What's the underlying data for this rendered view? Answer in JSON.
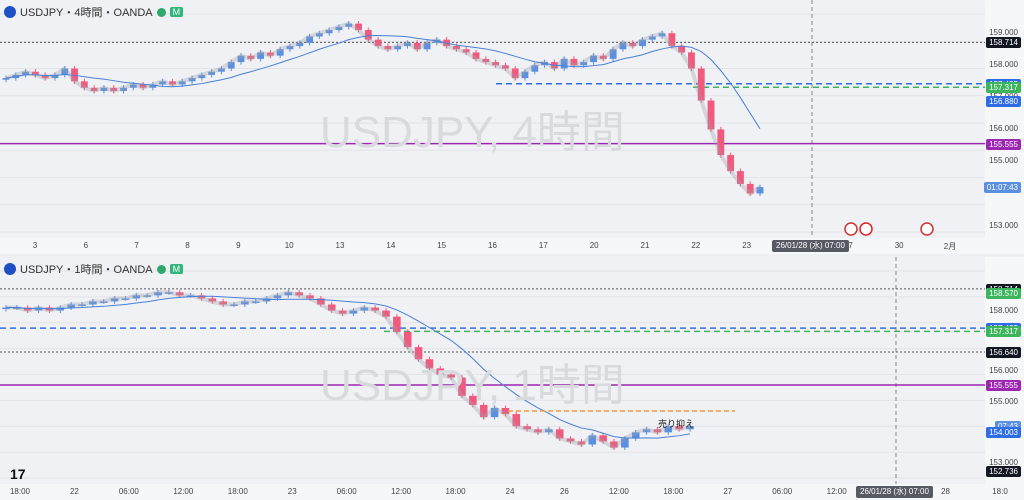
{
  "colors": {
    "up": "#5b8fe0",
    "down": "#f05a7e",
    "ma": "#4a7fd6",
    "bg": "#f0f1f4",
    "grid": "#e2e4e8",
    "blue_dash": "#2f6de6",
    "green_dash": "#3cb55c",
    "purple": "#9c27b0",
    "orange": "#f59a3a",
    "black_dot": "#555555"
  },
  "panel_4h": {
    "symbol": "USDJPY・4時間・OANDA",
    "flag": "M",
    "watermark": "USDJPY, 4時間",
    "y_ticks": [
      "159.000",
      "158.000",
      "157.000",
      "156.000",
      "155.000",
      "153.000"
    ],
    "price_tags": [
      {
        "label": "158.714",
        "color": "#131722",
        "price": 158.714
      },
      {
        "label": "157.425",
        "color": "#2f6de6",
        "price": 157.425
      },
      {
        "label": "157.317",
        "color": "#3cb55c",
        "price": 157.317
      },
      {
        "label": "156.880",
        "color": "#2f6de6",
        "price": 156.88
      },
      {
        "label": "155.555",
        "color": "#9c27b0",
        "price": 155.555
      },
      {
        "label": "01:07:43",
        "color": "#5b8fe0",
        "price": 154.2
      }
    ],
    "x_labels": [
      "3",
      "6",
      "7",
      "8",
      "9",
      "10",
      "13",
      "14",
      "15",
      "16",
      "17",
      "20",
      "21",
      "22",
      "23",
      "24",
      "27",
      "30",
      "2月"
    ],
    "cursor_label": "26/01/28 (水)  07:00"
  },
  "panel_1h": {
    "symbol": "USDJPY・1時間・OANDA",
    "flag": "M",
    "watermark": "USDJPY, 1時間",
    "y_ticks": [
      "158.000",
      "156.000",
      "155.000",
      "154.000",
      "153.000"
    ],
    "price_tags": [
      {
        "label": "158.714",
        "color": "#131722",
        "price": 158.714
      },
      {
        "label": "158.570",
        "color": "#3cb55c",
        "price": 158.57
      },
      {
        "label": "157.425",
        "color": "#2f6de6",
        "price": 157.425
      },
      {
        "label": "157.317",
        "color": "#3cb55c",
        "price": 157.317
      },
      {
        "label": "156.640",
        "color": "#131722",
        "price": 156.64
      },
      {
        "label": "155.555",
        "color": "#9c27b0",
        "price": 155.555
      },
      {
        "label": "07:43",
        "color": "#5b8fe0",
        "price": 154.2
      },
      {
        "label": "154.003",
        "color": "#2f6de6",
        "price": 154.003
      },
      {
        "label": "152.736",
        "color": "#131722",
        "price": 152.736
      }
    ],
    "x_labels": [
      "18:00",
      "22",
      "06:00",
      "12:00",
      "18:00",
      "23",
      "06:00",
      "12:00",
      "18:00",
      "24",
      "26",
      "12:00",
      "18:00",
      "27",
      "06:00",
      "12:00",
      "18:00",
      "28",
      "18:0"
    ],
    "cursor_label": "26/01/28 (水)  07:00",
    "annotation": "売り抑え"
  },
  "chart_data": [
    {
      "type": "candlestick",
      "title": "USDJPY・4時間・OANDA",
      "ylim": [
        152.8,
        159.6
      ],
      "levels": [
        158.714,
        157.425,
        157.317,
        156.88,
        155.555
      ],
      "close_series": [
        157.6,
        157.7,
        157.8,
        157.7,
        157.6,
        157.7,
        157.9,
        157.5,
        157.3,
        157.2,
        157.3,
        157.2,
        157.3,
        157.4,
        157.3,
        157.4,
        157.5,
        157.4,
        157.5,
        157.6,
        157.7,
        157.8,
        157.9,
        158.1,
        158.3,
        158.2,
        158.4,
        158.3,
        158.5,
        158.6,
        158.7,
        158.9,
        159.0,
        159.1,
        159.2,
        159.3,
        159.1,
        158.8,
        158.6,
        158.5,
        158.6,
        158.7,
        158.5,
        158.7,
        158.8,
        158.6,
        158.5,
        158.4,
        158.2,
        158.1,
        158.0,
        157.9,
        157.6,
        157.8,
        158.0,
        158.1,
        157.9,
        158.2,
        158.0,
        158.1,
        158.3,
        158.2,
        158.5,
        158.7,
        158.6,
        158.8,
        158.9,
        159.0,
        158.6,
        158.4,
        157.9,
        156.9,
        156.0,
        155.2,
        154.7,
        154.3,
        154.0,
        154.2
      ]
    },
    {
      "type": "candlestick",
      "title": "USDJPY・1時間・OANDA",
      "ylim": [
        152.5,
        159.3
      ],
      "levels": [
        158.714,
        158.57,
        157.425,
        157.317,
        156.64,
        155.555,
        154.003,
        152.736
      ],
      "close_series": [
        158.1,
        158.1,
        158.0,
        158.1,
        158.0,
        158.1,
        158.2,
        158.2,
        158.3,
        158.3,
        158.4,
        158.4,
        158.5,
        158.5,
        158.6,
        158.6,
        158.5,
        158.5,
        158.4,
        158.3,
        158.2,
        158.2,
        158.3,
        158.3,
        158.4,
        158.5,
        158.6,
        158.5,
        158.4,
        158.2,
        158.0,
        157.9,
        158.0,
        158.1,
        158.0,
        157.8,
        157.3,
        156.8,
        156.4,
        156.1,
        155.9,
        155.8,
        155.2,
        154.9,
        154.5,
        154.8,
        154.6,
        154.2,
        154.1,
        154.0,
        154.1,
        153.8,
        153.7,
        153.6,
        153.9,
        153.7,
        153.5,
        153.8,
        154.0,
        154.1,
        154.0,
        154.2,
        154.1,
        154.2
      ]
    }
  ]
}
